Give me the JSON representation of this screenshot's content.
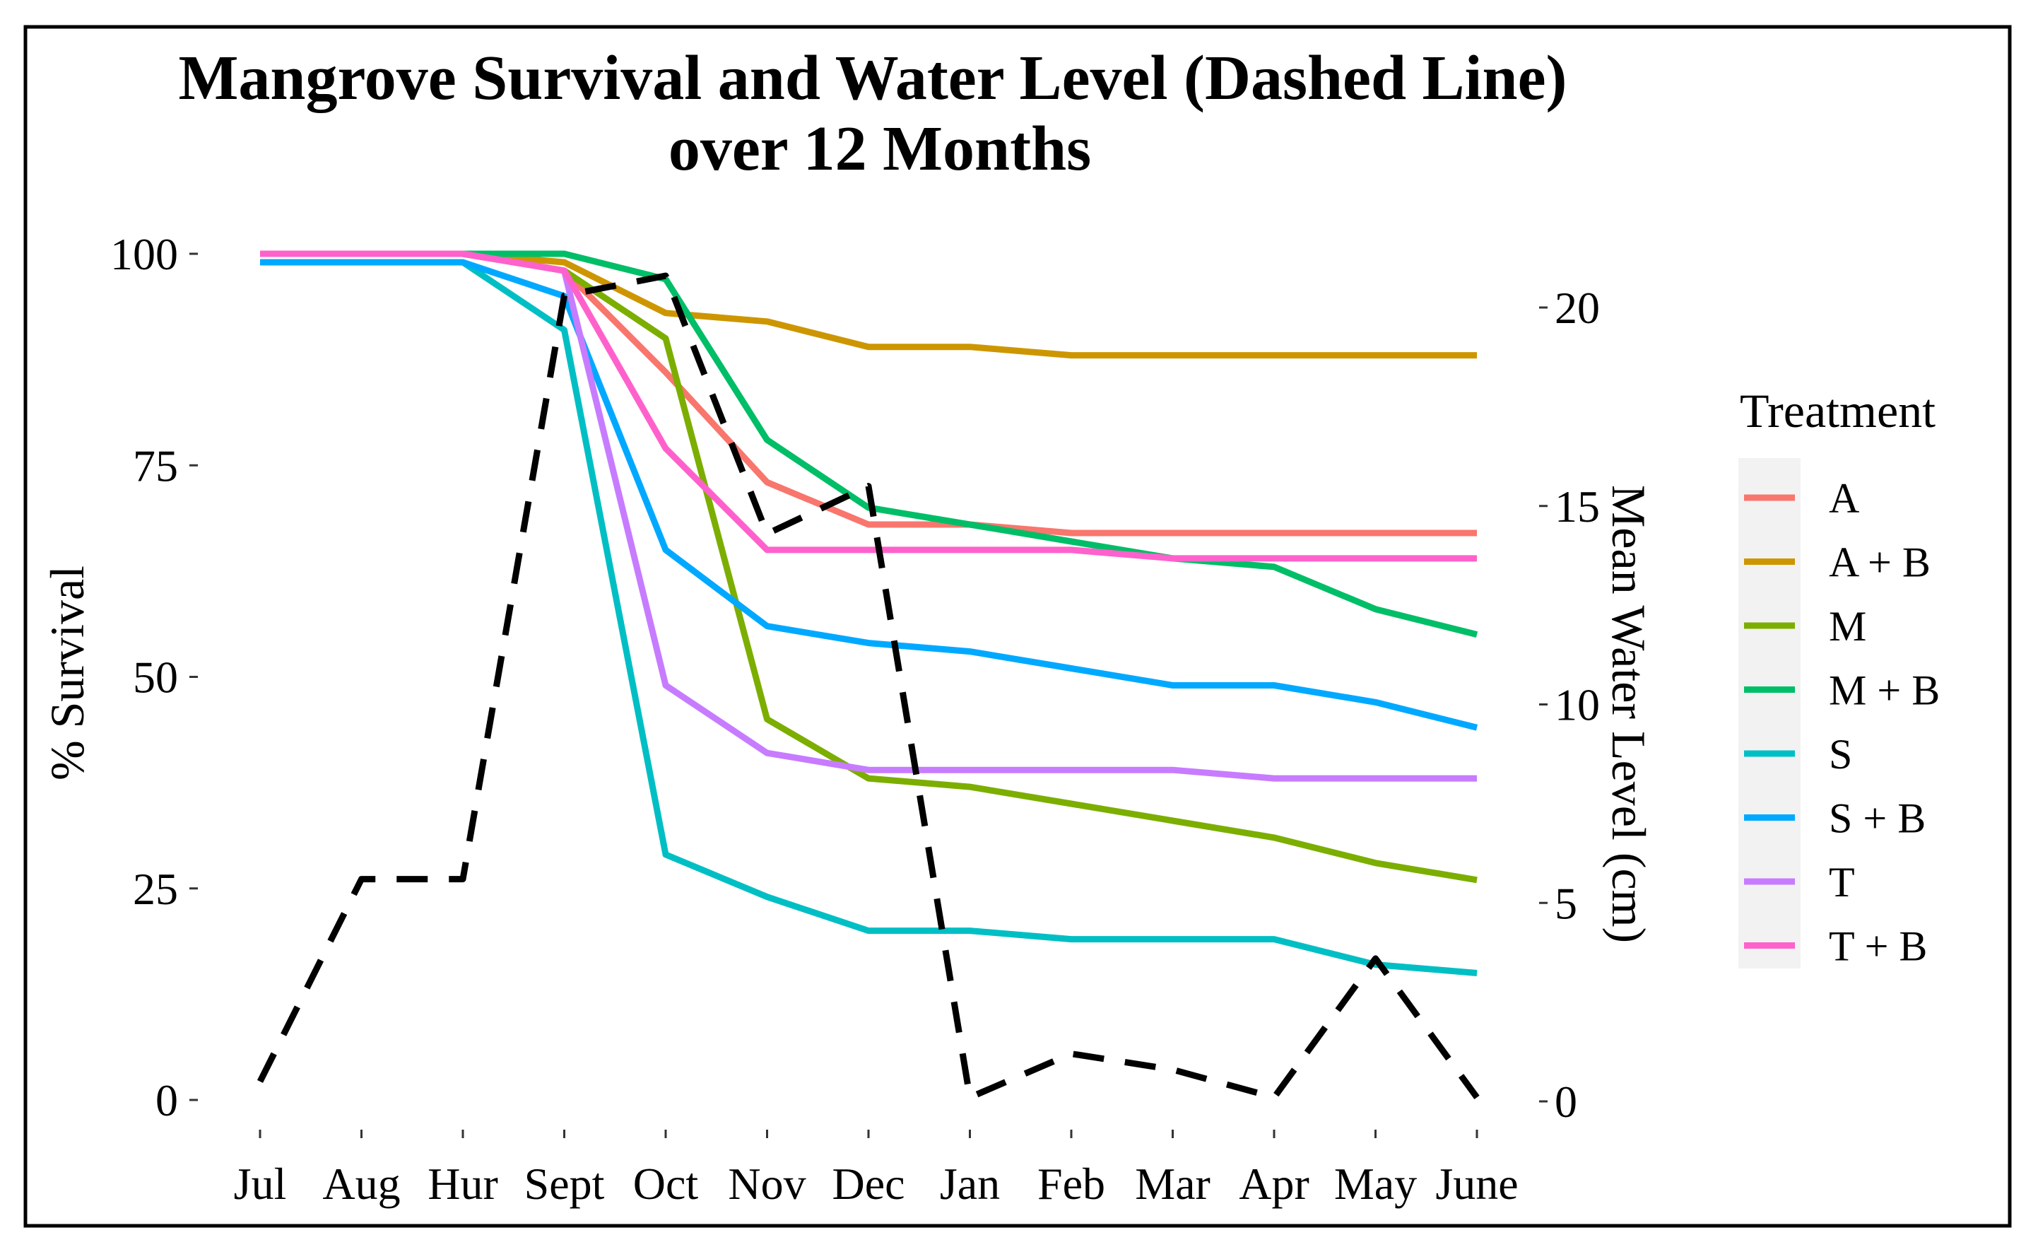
{
  "chart_data": {
    "type": "line",
    "title": [
      "Mangrove Survival and Water Level (Dashed Line)",
      "over 12 Months"
    ],
    "categories": [
      "Jul",
      "Aug",
      "Hur",
      "Sept",
      "Oct",
      "Nov",
      "Dec",
      "Jan",
      "Feb",
      "Mar",
      "Apr",
      "May",
      "June"
    ],
    "ylabel": "% Survival",
    "y2label": "Mean Water Level (cm)",
    "ylim": [
      0,
      100
    ],
    "y2lim": [
      0,
      20
    ],
    "yticks": [
      "0",
      "25",
      "50",
      "75",
      "100"
    ],
    "y2ticks": [
      "0",
      "5",
      "10",
      "15",
      "20"
    ],
    "legend_title": "Treatment",
    "legend_position": "right",
    "series": [
      {
        "name": "A",
        "color": "#F8766D",
        "values": [
          100,
          100,
          100,
          98,
          86,
          73,
          68,
          68,
          67,
          67,
          67,
          67,
          67
        ]
      },
      {
        "name": "A + B",
        "color": "#CD9600",
        "values": [
          100,
          100,
          100,
          99,
          93,
          92,
          89,
          89,
          88,
          88,
          88,
          88,
          88
        ]
      },
      {
        "name": "M",
        "color": "#7CAE00",
        "values": [
          100,
          100,
          100,
          98,
          90,
          45,
          38,
          37,
          35,
          33,
          31,
          28,
          26
        ]
      },
      {
        "name": "M + B",
        "color": "#00BE67",
        "values": [
          100,
          100,
          100,
          100,
          97,
          78,
          70,
          68,
          66,
          64,
          63,
          58,
          55
        ]
      },
      {
        "name": "S",
        "color": "#00BFC4",
        "values": [
          99,
          99,
          99,
          91,
          29,
          24,
          20,
          20,
          19,
          19,
          19,
          16,
          15
        ]
      },
      {
        "name": "S + B",
        "color": "#00A9FF",
        "values": [
          99,
          99,
          99,
          95,
          65,
          56,
          54,
          53,
          51,
          49,
          49,
          47,
          44
        ]
      },
      {
        "name": "T",
        "color": "#C77CFF",
        "values": [
          100,
          100,
          100,
          98,
          49,
          41,
          39,
          39,
          39,
          39,
          38,
          38,
          38
        ]
      },
      {
        "name": "T + B",
        "color": "#FF61CC",
        "values": [
          100,
          100,
          100,
          98,
          77,
          65,
          65,
          65,
          65,
          64,
          64,
          64,
          64
        ]
      }
    ],
    "water_level": {
      "name": "Mean Water Level (cm)",
      "style": "dashed",
      "color": "#000000",
      "values": [
        0.5,
        5.6,
        5.6,
        20.3,
        20.8,
        14.3,
        15.5,
        0.1,
        1.2,
        0.8,
        0.1,
        3.6,
        0.1
      ]
    }
  }
}
